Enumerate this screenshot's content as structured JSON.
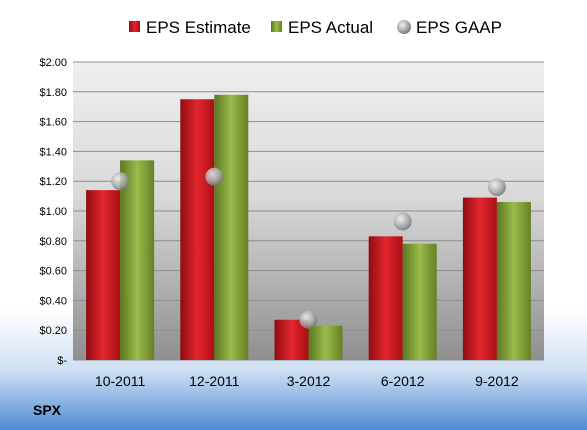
{
  "chart_data": {
    "type": "bar",
    "ticker": "SPX",
    "categories": [
      "10-2011",
      "12-2011",
      "3-2012",
      "6-2012",
      "9-2012"
    ],
    "series": [
      {
        "name": "EPS Estimate",
        "kind": "bar",
        "color": "#c0141c",
        "values": [
          1.14,
          1.75,
          0.27,
          0.83,
          1.09
        ]
      },
      {
        "name": "EPS Actual",
        "kind": "bar",
        "color": "#7a9a2e",
        "values": [
          1.34,
          1.78,
          0.23,
          0.78,
          1.06
        ]
      },
      {
        "name": "EPS GAAP",
        "kind": "marker",
        "color": "#a8a8a8",
        "values": [
          1.2,
          1.23,
          0.27,
          0.93,
          1.16
        ]
      }
    ],
    "yticks": [
      "$-",
      "$0.20",
      "$0.40",
      "$0.60",
      "$0.80",
      "$1.00",
      "$1.20",
      "$1.40",
      "$1.60",
      "$1.80",
      "$2.00"
    ],
    "ylim": [
      0,
      2.0
    ],
    "grid": true,
    "legend_position": "top"
  }
}
